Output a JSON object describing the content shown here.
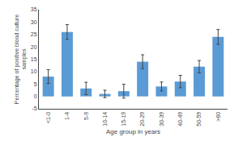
{
  "chart_data": {
    "type": "bar",
    "categories": [
      "<1-0",
      "1-4",
      "5-9",
      "10-14",
      "15-19",
      "20-29",
      "30-39",
      "40-49",
      "50-59",
      ">60"
    ],
    "values": [
      8.0,
      26.0,
      3.2,
      1.0,
      2.1,
      14.0,
      4.0,
      6.0,
      12.0,
      24.0
    ],
    "errors": [
      2.8,
      3.0,
      2.5,
      1.5,
      2.8,
      2.8,
      1.8,
      2.5,
      2.5,
      3.0
    ],
    "color": "#5B9BD5",
    "ylabel": "Percentage of positive blood culture\nsamples",
    "xlabel": "Age group in years",
    "ylim": [
      -5,
      35
    ],
    "yticks": [
      -5,
      0,
      5,
      10,
      15,
      20,
      25,
      30,
      35
    ],
    "grid": false
  }
}
